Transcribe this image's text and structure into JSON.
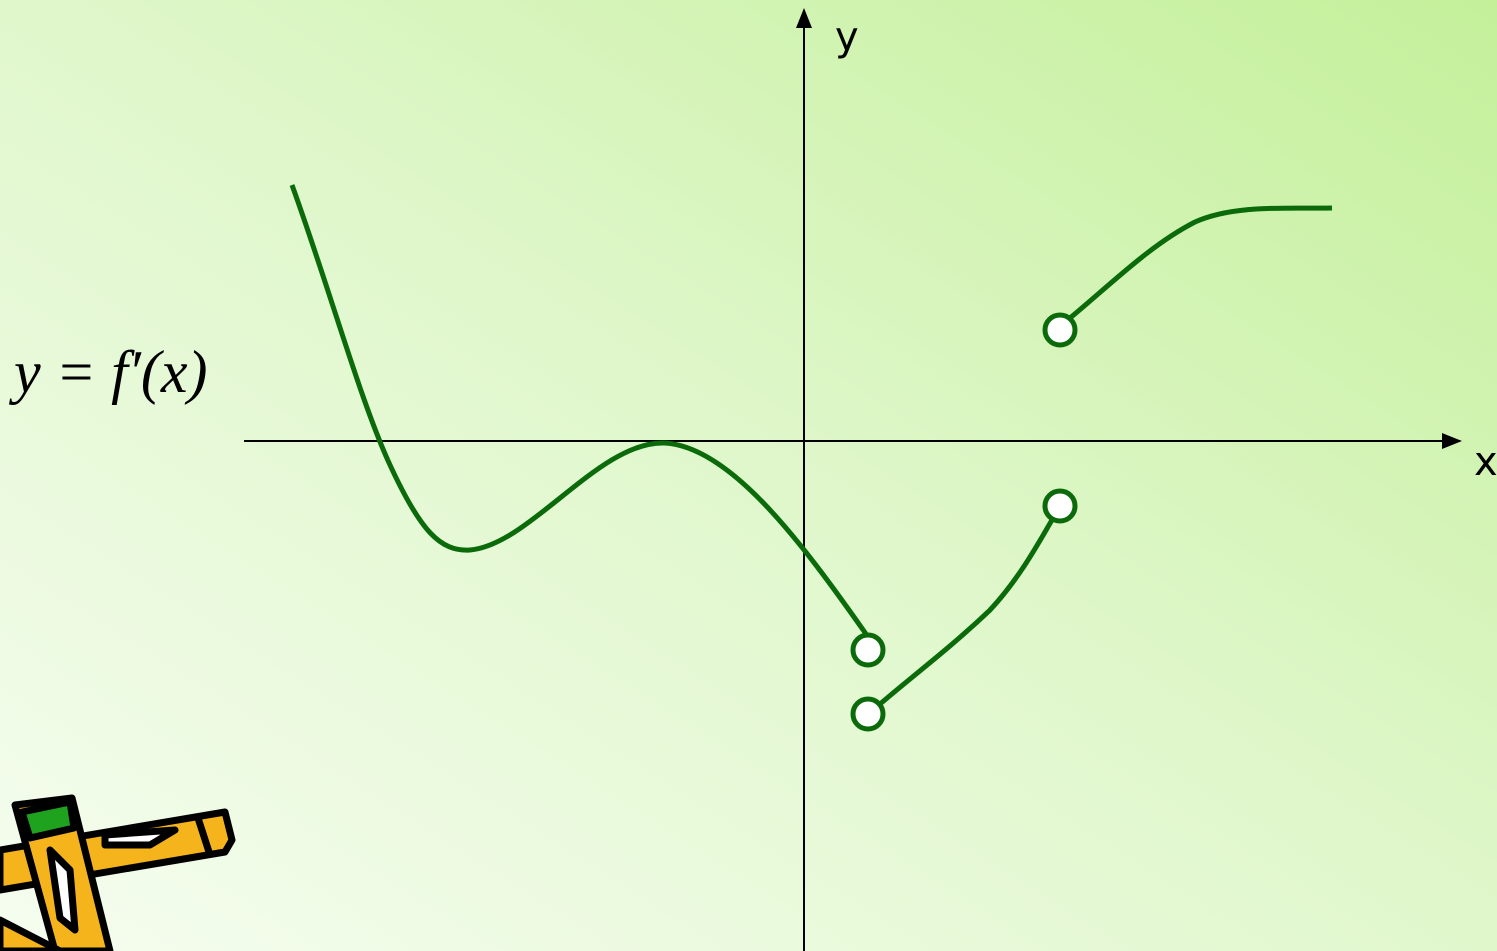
{
  "axes": {
    "x_label": "x",
    "y_label": "y"
  },
  "formula": "y = f′(x)"
}
